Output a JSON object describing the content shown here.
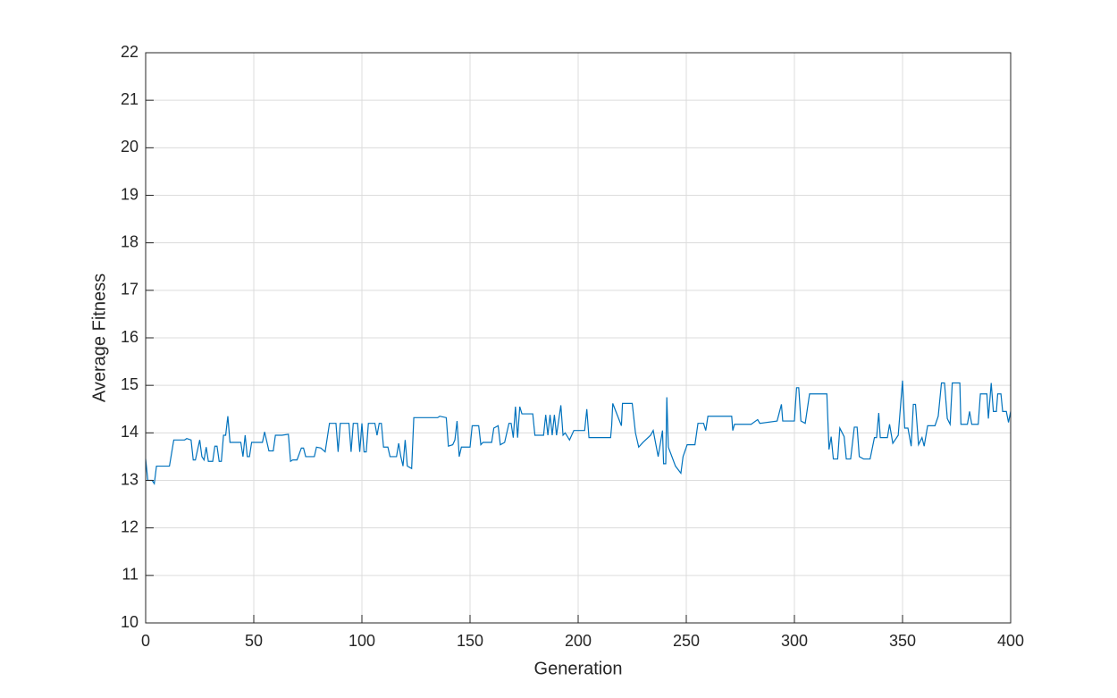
{
  "chart_data": {
    "type": "line",
    "xlabel": "Generation",
    "ylabel": "Average Fitness",
    "xlim": [
      0,
      400
    ],
    "xticks": [
      0,
      50,
      100,
      150,
      200,
      250,
      300,
      350,
      400
    ],
    "ylim": [
      10,
      22
    ],
    "yticks": [
      10,
      11,
      12,
      13,
      14,
      15,
      16,
      17,
      18,
      19,
      20,
      21,
      22
    ],
    "grid": true,
    "series": [
      {
        "color": "#0072bd",
        "x": [
          0,
          1,
          3,
          4,
          5,
          11,
          13,
          18,
          19,
          21,
          22,
          23,
          25,
          26,
          27,
          28,
          29,
          31,
          32,
          33,
          34,
          35,
          36,
          37,
          38,
          39,
          44,
          45,
          46,
          47,
          48,
          49,
          54,
          55,
          57,
          59,
          60,
          63,
          66,
          67,
          68,
          70,
          72,
          73,
          74,
          78,
          79,
          81,
          83,
          85,
          88,
          89,
          90,
          94,
          95,
          96,
          98,
          99,
          100,
          101,
          102,
          103,
          106,
          107,
          108,
          109,
          110,
          112,
          113,
          116,
          117,
          118,
          119,
          120,
          121,
          123,
          124,
          135,
          136,
          139,
          140,
          142,
          143,
          144,
          145,
          146,
          150,
          151,
          154,
          155,
          156,
          160,
          161,
          163,
          164,
          166,
          168,
          169,
          170,
          171,
          172,
          173,
          174,
          179,
          180,
          184,
          185,
          186,
          187,
          188,
          189,
          190,
          192,
          193,
          194,
          196,
          198,
          203,
          204,
          205,
          215,
          215.5,
          216,
          220,
          220.5,
          225,
          226.5,
          228,
          230,
          233.5,
          234.7,
          237,
          239,
          239.5,
          240.5,
          241,
          241.7,
          245,
          247.5,
          248.5,
          250.4,
          254,
          255.4,
          258,
          259,
          260,
          271,
          271.5,
          272.3,
          280,
          283,
          284,
          292,
          294,
          294.6,
          300,
          301,
          302,
          303,
          305,
          307,
          315,
          316,
          317,
          318,
          320,
          321,
          323,
          324,
          326,
          327.7,
          329,
          330,
          332,
          335,
          337,
          338,
          339,
          339.7,
          343,
          344,
          345.5,
          348,
          350,
          351,
          352.5,
          354,
          355,
          356,
          357.4,
          359,
          360,
          361.6,
          365,
          366.5,
          368,
          369.4,
          370.7,
          372,
          373,
          376.5,
          377,
          380,
          381,
          382,
          385,
          386,
          389,
          389.7,
          391,
          392,
          393.4,
          394,
          395.5,
          396.3,
          398,
          399,
          400
        ],
        "values": [
          13.45,
          13.0,
          13.0,
          12.93,
          13.3,
          13.3,
          13.85,
          13.85,
          13.88,
          13.85,
          13.43,
          13.43,
          13.85,
          13.5,
          13.43,
          13.7,
          13.4,
          13.4,
          13.72,
          13.72,
          13.4,
          13.4,
          13.95,
          13.95,
          14.35,
          13.8,
          13.8,
          13.5,
          13.95,
          13.5,
          13.5,
          13.8,
          13.8,
          14.02,
          13.62,
          13.62,
          13.95,
          13.95,
          13.97,
          13.4,
          13.43,
          13.43,
          13.68,
          13.68,
          13.5,
          13.5,
          13.7,
          13.68,
          13.6,
          14.2,
          14.2,
          13.6,
          14.2,
          14.2,
          13.6,
          14.2,
          14.2,
          13.6,
          14.2,
          13.6,
          13.6,
          14.2,
          14.2,
          13.95,
          14.2,
          14.2,
          13.7,
          13.7,
          13.5,
          13.5,
          13.78,
          13.5,
          13.3,
          13.85,
          13.3,
          13.25,
          14.32,
          14.32,
          14.35,
          14.32,
          13.72,
          13.75,
          13.85,
          14.25,
          13.5,
          13.7,
          13.7,
          14.15,
          14.15,
          13.75,
          13.8,
          13.8,
          14.1,
          14.15,
          13.75,
          13.8,
          14.2,
          14.2,
          13.9,
          14.55,
          13.9,
          14.55,
          14.4,
          14.4,
          13.95,
          13.95,
          14.38,
          13.95,
          14.38,
          13.95,
          14.38,
          13.95,
          14.58,
          13.95,
          14.0,
          13.85,
          14.05,
          14.05,
          14.5,
          13.9,
          13.9,
          14.15,
          14.62,
          14.15,
          14.62,
          14.62,
          14.0,
          13.7,
          13.8,
          13.95,
          14.05,
          13.5,
          14.05,
          13.35,
          13.35,
          14.75,
          13.7,
          13.3,
          13.15,
          13.5,
          13.75,
          13.75,
          14.2,
          14.2,
          14.05,
          14.35,
          14.35,
          14.05,
          14.18,
          14.18,
          14.28,
          14.2,
          14.25,
          14.6,
          14.25,
          14.25,
          14.95,
          14.95,
          14.25,
          14.2,
          14.82,
          14.82,
          13.65,
          13.92,
          13.45,
          13.45,
          14.1,
          13.92,
          13.45,
          13.45,
          14.12,
          14.12,
          13.5,
          13.45,
          13.45,
          13.9,
          13.9,
          14.42,
          13.9,
          13.9,
          14.18,
          13.78,
          13.95,
          15.1,
          14.1,
          14.1,
          13.72,
          14.6,
          14.6,
          13.75,
          13.9,
          13.72,
          14.15,
          14.15,
          14.35,
          15.05,
          15.05,
          14.3,
          14.18,
          15.05,
          15.05,
          14.18,
          14.18,
          14.45,
          14.18,
          14.18,
          14.82,
          14.82,
          14.3,
          15.05,
          14.45,
          14.45,
          14.82,
          14.82,
          14.45,
          14.45,
          14.22,
          14.45
        ]
      }
    ]
  }
}
